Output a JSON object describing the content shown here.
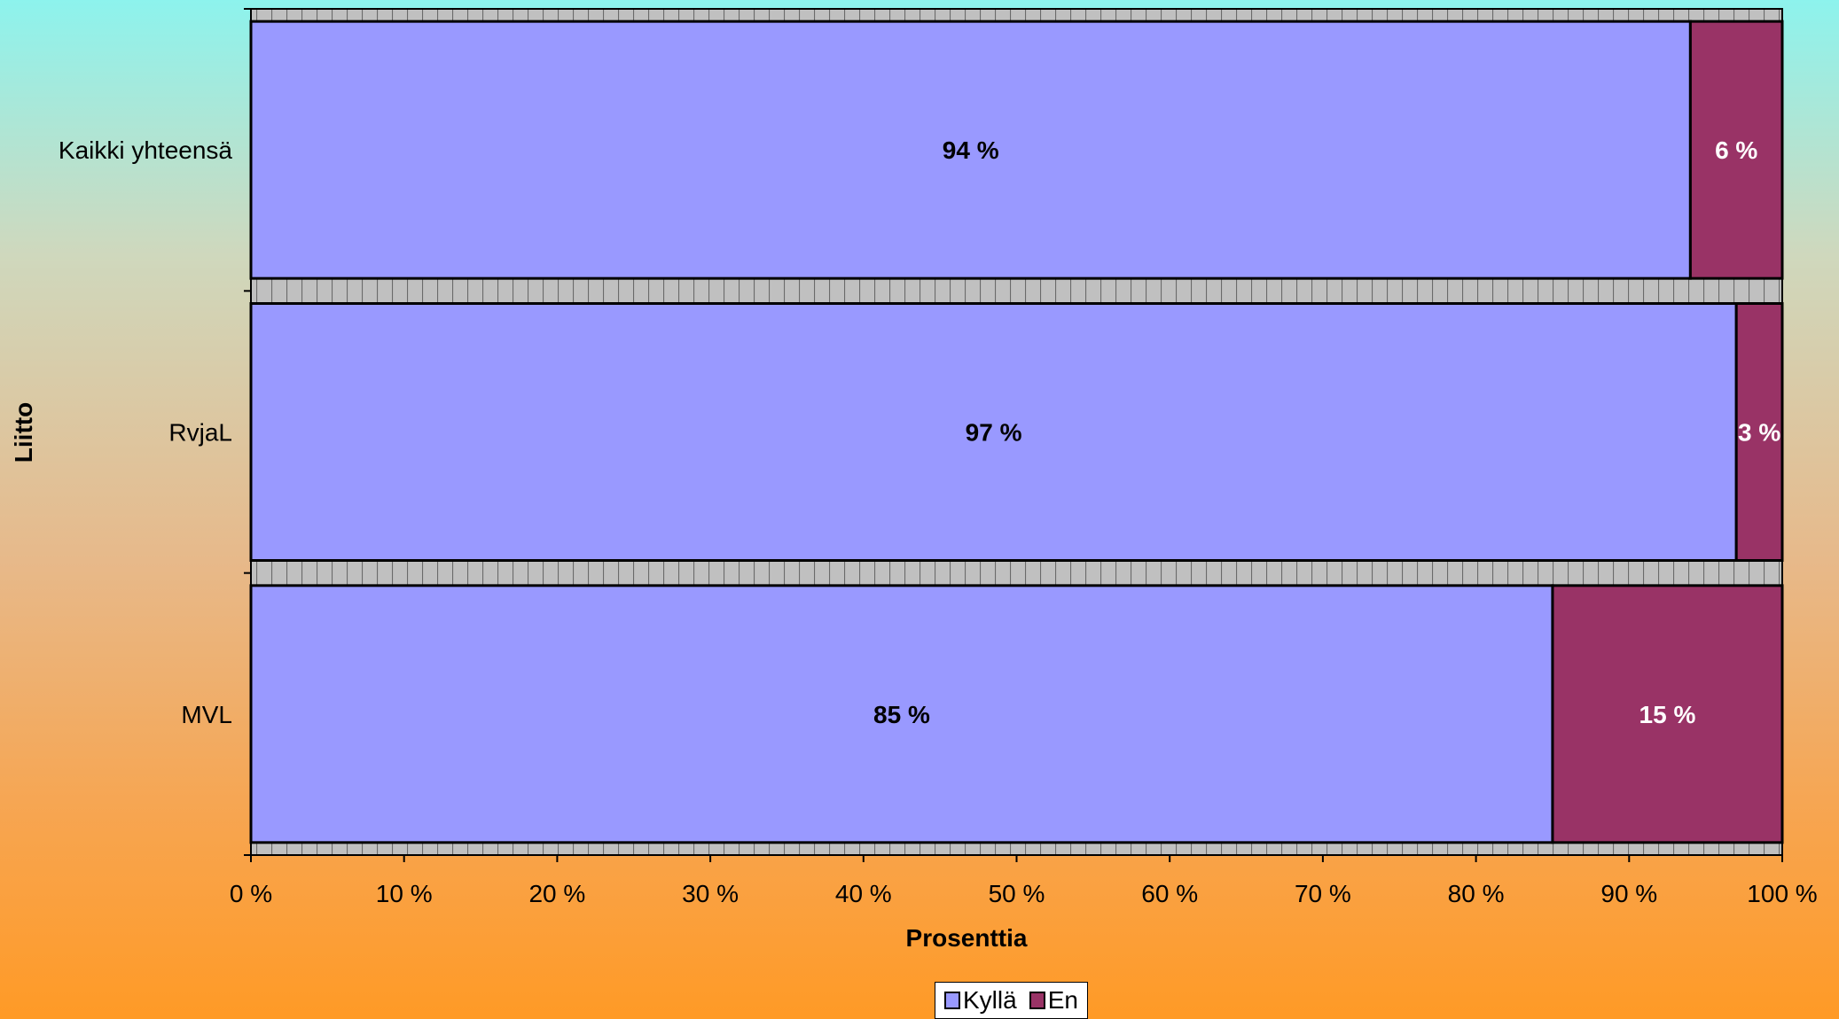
{
  "chart_data": {
    "type": "bar",
    "orientation": "horizontal",
    "stacked": "percent",
    "categories": [
      "Kaikki yhteensä",
      "RvjaL",
      "MVL"
    ],
    "series": [
      {
        "name": "Kyllä",
        "values": [
          94,
          97,
          85
        ],
        "labels": [
          "94 %",
          "97 %",
          "85 %"
        ],
        "color": "#9999ff"
      },
      {
        "name": "En",
        "values": [
          6,
          3,
          15
        ],
        "labels": [
          "6 %",
          "3 %",
          "15 %"
        ],
        "color": "#993366"
      }
    ],
    "xlabel": "Prosenttia",
    "ylabel": "Liitto",
    "xlim": [
      0,
      100
    ],
    "xticks": [
      "0 %",
      "10 %",
      "20 %",
      "30 %",
      "40 %",
      "50 %",
      "60 %",
      "70 %",
      "80 %",
      "90 %",
      "100 %"
    ],
    "grid": false,
    "legend_position": "bottom"
  }
}
